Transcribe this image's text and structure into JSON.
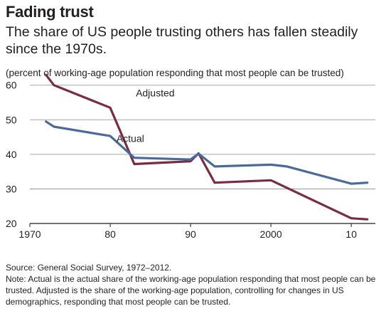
{
  "header": {
    "title": "Fading trust",
    "subtitle": "The share of US people trusting others has fallen steadily since the 1970s.",
    "unit_label": "(percent of working-age population responding that most people can be trusted)"
  },
  "footer": {
    "source": "Source: General Social Survey, 1972–2012.",
    "note": "Note: Actual is the actual share of the working-age population responding that most people can be trusted. Adjusted is the share of the working-age population, controlling for changes in US demographics, responding that most people can be trusted."
  },
  "colors": {
    "adjusted": "#7b2c43",
    "actual": "#4a6b9a",
    "grid": "#8a8a8a",
    "text": "#231f20"
  },
  "chart_data": {
    "type": "line",
    "title": "Fading trust",
    "xlabel": "",
    "ylabel": "(percent of working-age population responding that most people can be trusted)",
    "xlim": [
      1970,
      2013
    ],
    "ylim": [
      20,
      62
    ],
    "x_ticks": [
      1970,
      1980,
      1990,
      2000,
      2010
    ],
    "x_tick_labels": [
      "1970",
      "80",
      "90",
      "2000",
      "10"
    ],
    "y_ticks": [
      20,
      30,
      40,
      50,
      60
    ],
    "y_tick_labels": [
      "20",
      "30",
      "40",
      "50",
      "60"
    ],
    "grid": "horizontal",
    "series": [
      {
        "name": "Adjusted",
        "color": "#7b2c43",
        "x": [
          1972,
          1973,
          1980,
          1983,
          1990,
          1991,
          1993,
          2000,
          2010,
          2012
        ],
        "y": [
          63,
          60,
          53.5,
          37.2,
          38,
          40.3,
          31.8,
          32.5,
          21.5,
          21.2
        ]
      },
      {
        "name": "Actual",
        "color": "#4a6b9a",
        "x": [
          1972,
          1973,
          1980,
          1983,
          1990,
          1991,
          1993,
          2000,
          2002,
          2010,
          2012
        ],
        "y": [
          49.5,
          48,
          45.3,
          39,
          38.5,
          40.2,
          36.5,
          37,
          36.5,
          31.5,
          31.8
        ]
      }
    ],
    "annotations": [
      {
        "text": "Adjusted",
        "series": "Adjusted"
      },
      {
        "text": "Actual",
        "series": "Actual"
      }
    ]
  }
}
